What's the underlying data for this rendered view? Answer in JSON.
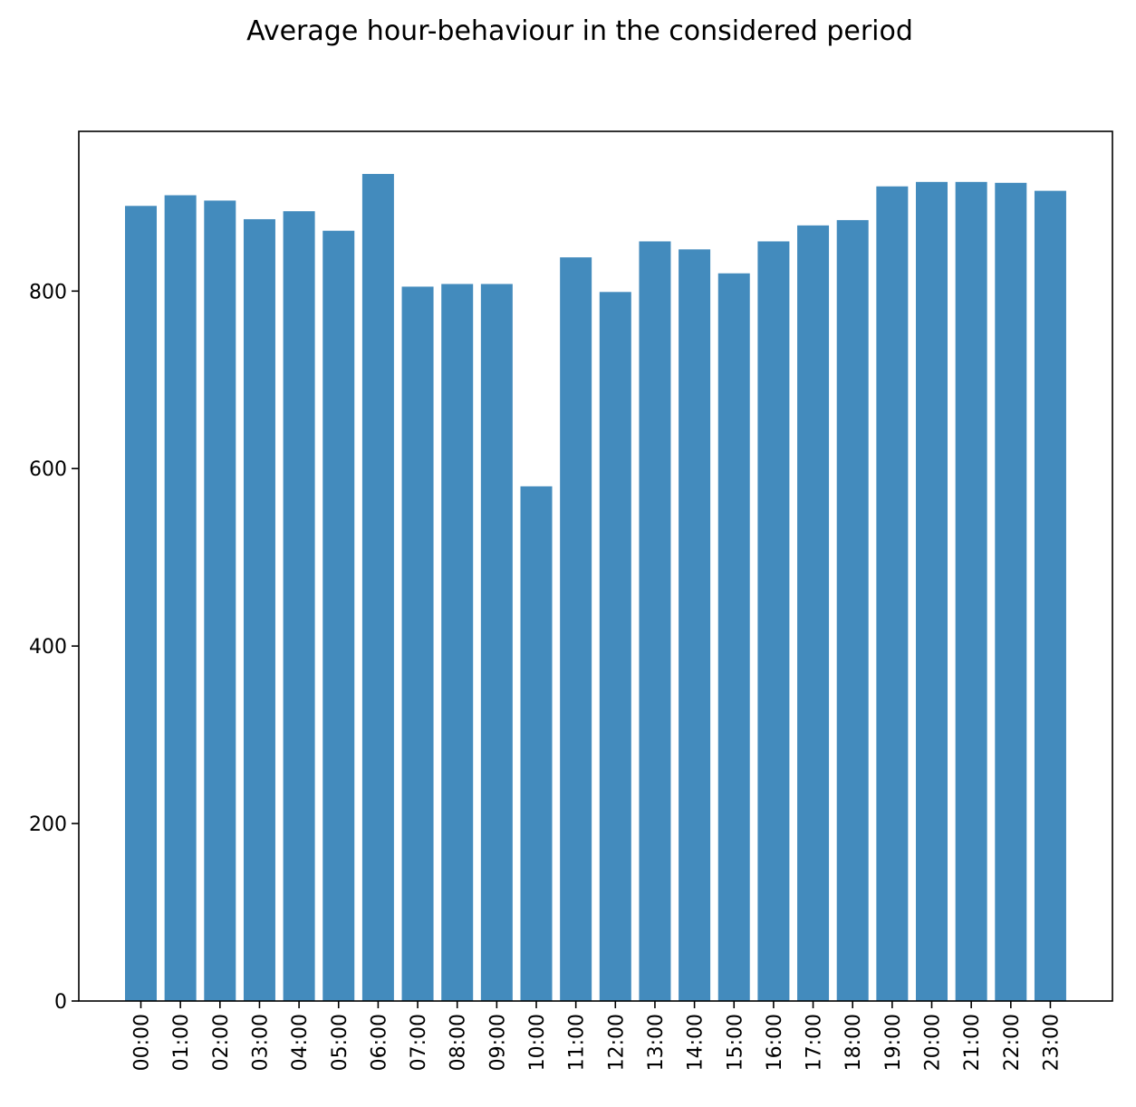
{
  "chart_data": {
    "type": "bar",
    "title": "Average hour-behaviour in the considered period",
    "xlabel": "",
    "ylabel": "",
    "categories": [
      "00:00",
      "01:00",
      "02:00",
      "03:00",
      "04:00",
      "05:00",
      "06:00",
      "07:00",
      "08:00",
      "09:00",
      "10:00",
      "11:00",
      "12:00",
      "13:00",
      "14:00",
      "15:00",
      "16:00",
      "17:00",
      "18:00",
      "19:00",
      "20:00",
      "21:00",
      "22:00",
      "23:00"
    ],
    "values": [
      896,
      908,
      902,
      881,
      890,
      868,
      932,
      805,
      808,
      808,
      580,
      838,
      799,
      856,
      847,
      820,
      856,
      874,
      880,
      918,
      923,
      923,
      922,
      913
    ],
    "ylim": [
      0,
      980
    ],
    "yticks": [
      0,
      200,
      400,
      600,
      800
    ],
    "bar_color": "#438bbd",
    "grid": false,
    "legend": "none"
  }
}
